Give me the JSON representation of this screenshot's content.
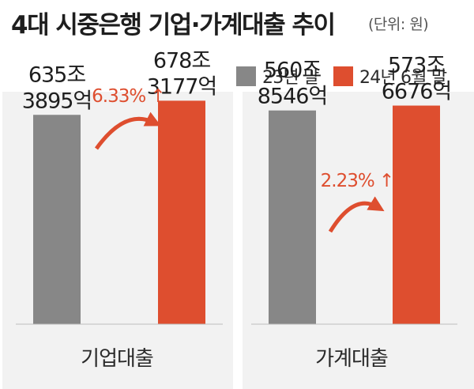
{
  "header": {
    "title": "4대 시중은행 기업·가계대출 추이",
    "unit": "(단위: 원)"
  },
  "legend": [
    {
      "label": "23년 말",
      "color": "#878787"
    },
    {
      "label": "24년 6월 말",
      "color": "#de4e2f"
    }
  ],
  "chart_data": {
    "type": "bar",
    "unit": "조원",
    "categories": [
      "기업대출",
      "가계대출"
    ],
    "series": [
      {
        "name": "23년 말",
        "color": "#878787",
        "values": [
          635.3895,
          560.8546
        ]
      },
      {
        "name": "24년 6월 말",
        "color": "#de4e2f",
        "values": [
          678.3177,
          573.6676
        ]
      }
    ],
    "data_labels": [
      [
        [
          "635조",
          "3895억"
        ],
        [
          "678조",
          "3177억"
        ]
      ],
      [
        [
          "560조",
          "8546억"
        ],
        [
          "573조",
          "6676억"
        ]
      ]
    ],
    "changes": [
      "6.33% ↑",
      "2.23% ↑"
    ],
    "ylim_per_panel": [
      [
        0,
        960
      ],
      [
        0,
        830
      ]
    ]
  }
}
